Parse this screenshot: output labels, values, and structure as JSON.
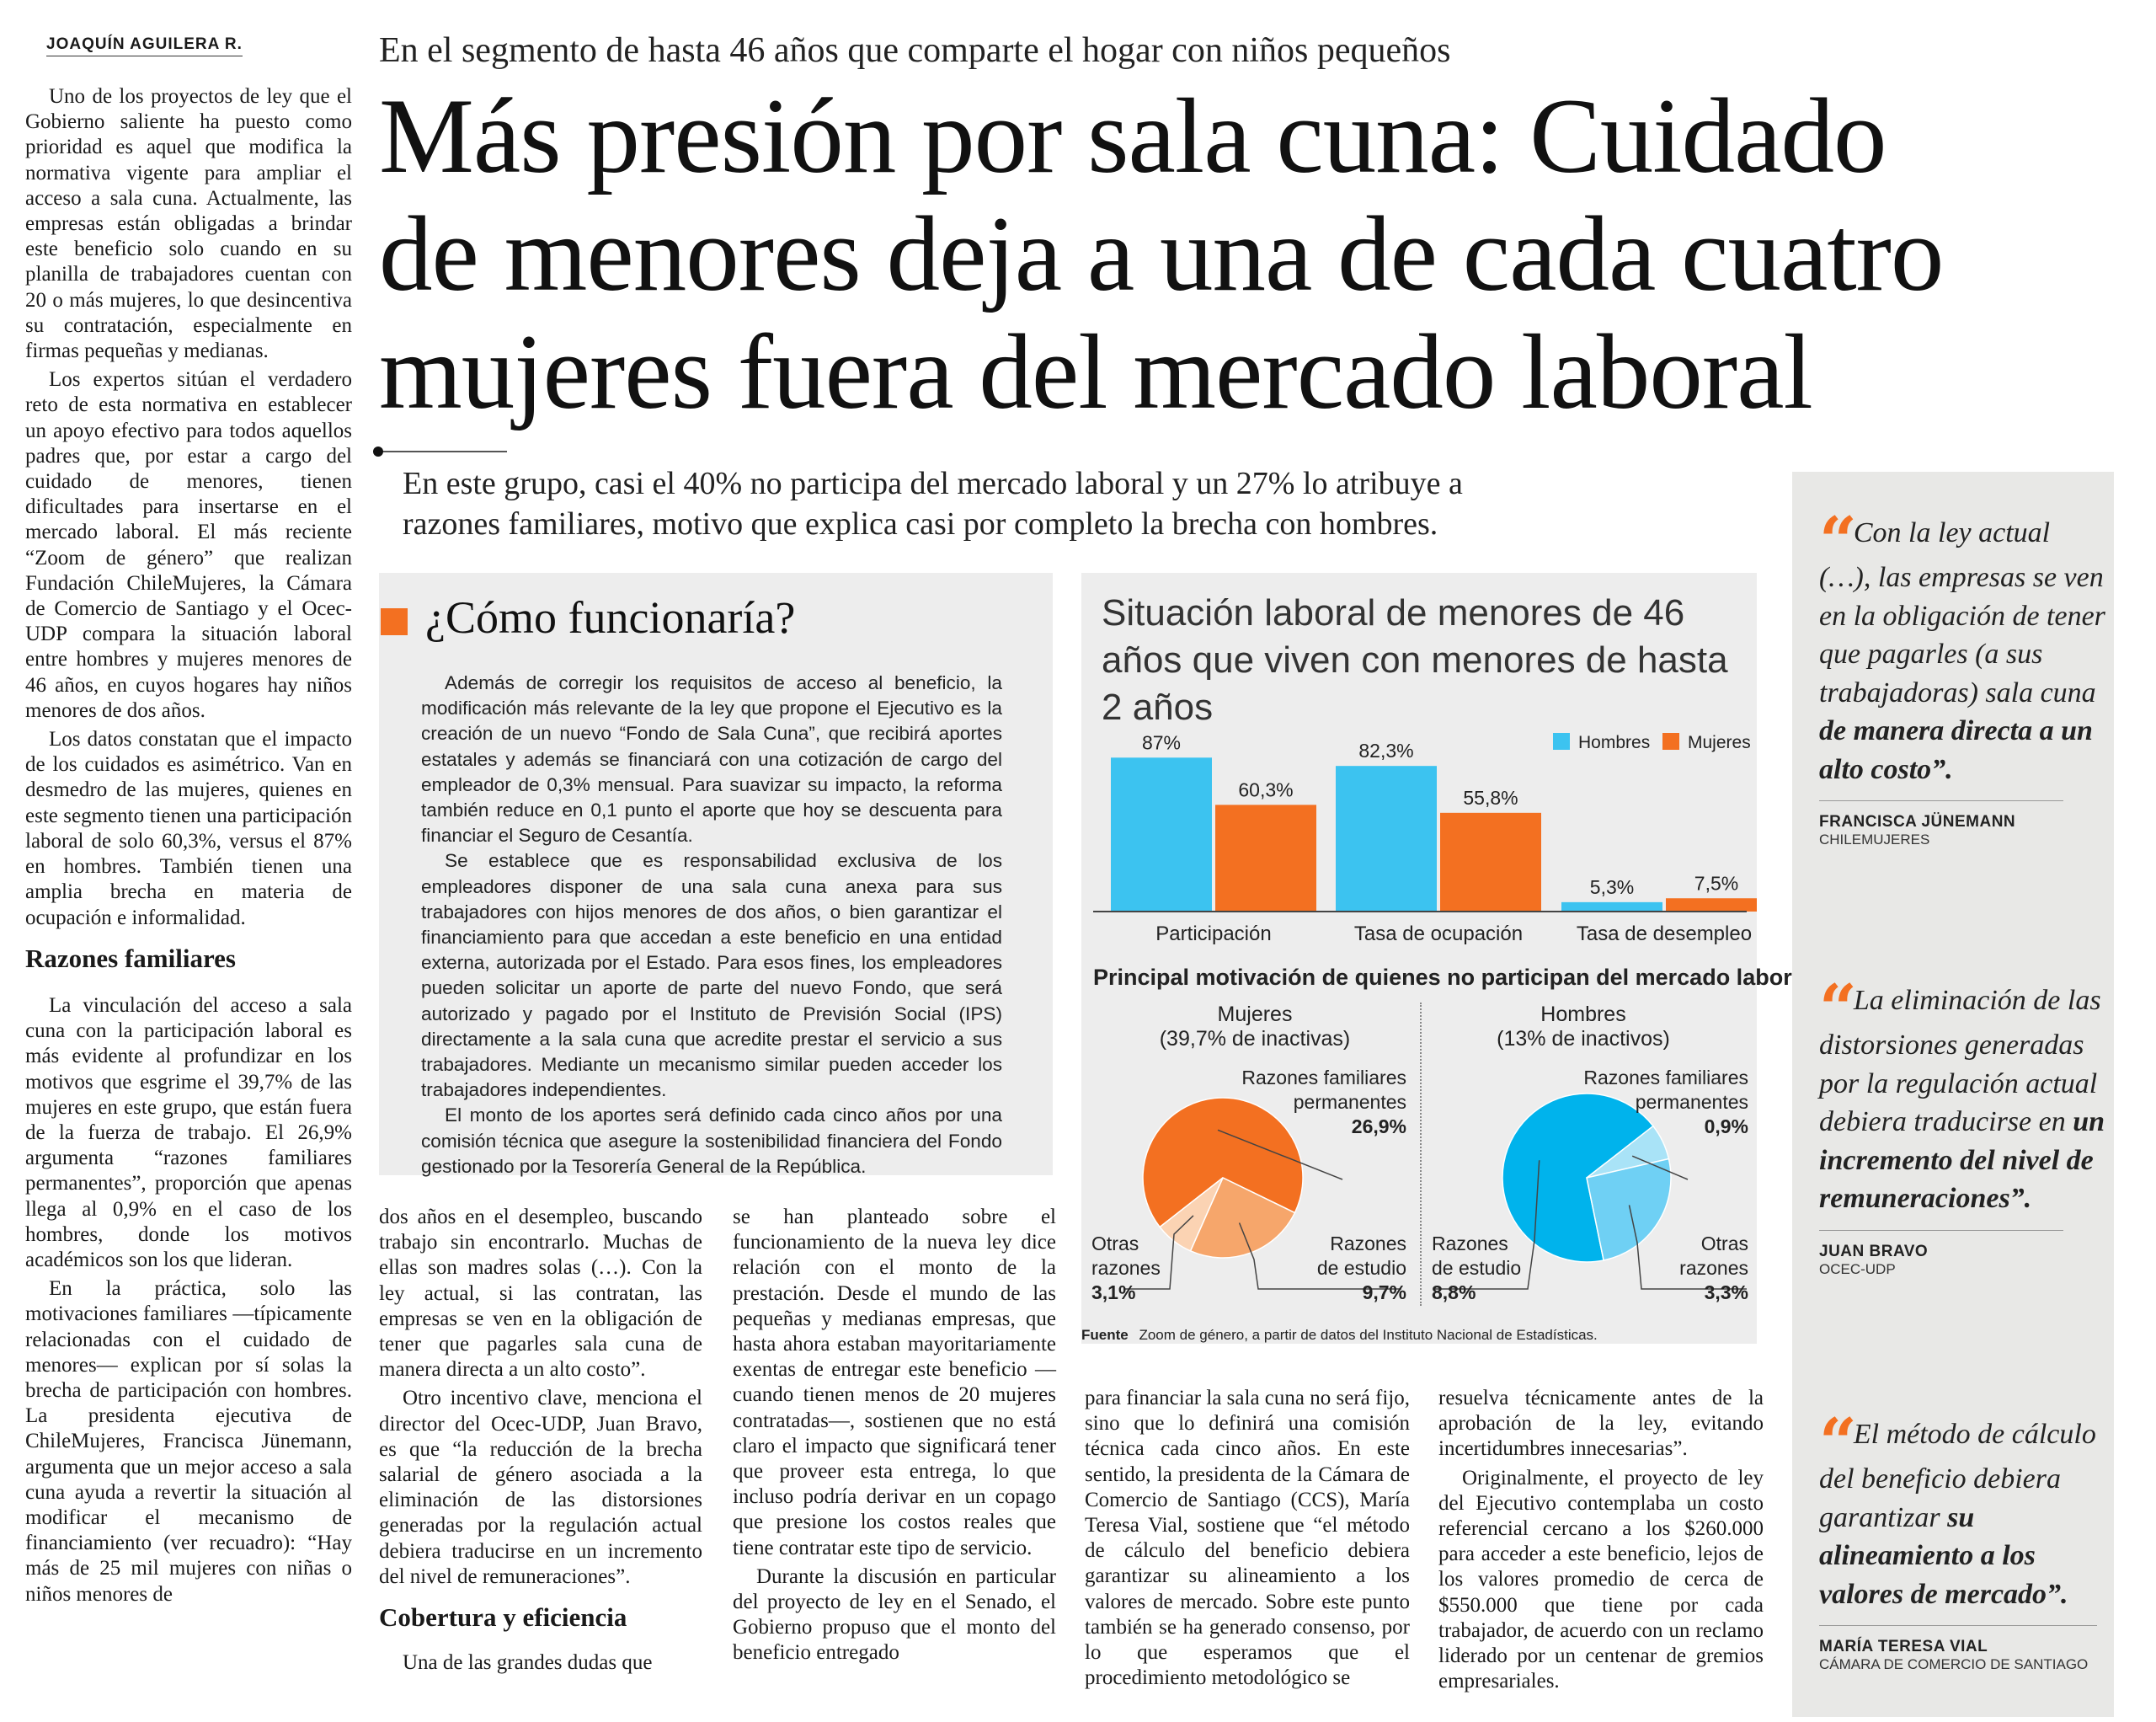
{
  "byline": "JOAQUÍN AGUILERA R.",
  "kicker": "En el segmento de hasta 46 años que comparte el hogar con niños pequeños",
  "headline": [
    "Más presión por sala cuna: Cuidado",
    "de menores deja a una de cada cuatro",
    "mujeres fuera del mercado laboral"
  ],
  "deck": [
    "En este grupo, casi el 40% no participa del mercado laboral y un 27% lo atribuye a",
    "razones familiares, motivo que explica casi por completo la brecha con hombres."
  ],
  "left_column": {
    "paragraphs": [
      "Uno de los proyectos de ley que el Gobierno saliente ha puesto como prioridad es aquel que modifica la normativa vigente para ampliar el acceso a sala cuna. Actualmente, las empresas están obligadas a brindar este beneficio solo cuando en su planilla de trabajadores cuentan con 20 o más mujeres, lo que desincentiva su contratación, especialmente en firmas pequeñas y medianas.",
      "Los expertos sitúan el verdadero reto de esta normativa en establecer un apoyo efectivo para todos aquellos padres que, por estar a cargo del cuidado de menores, tienen dificultades para insertarse en el mercado laboral. El más reciente “Zoom de género” que realizan Fundación ChileMujeres, la Cámara de Comercio de Santiago y el Ocec-UDP compara la situación laboral entre hombres y mujeres menores de 46 años, en cuyos hogares hay niños menores de dos años.",
      "Los datos constatan que el impacto de los cuidados es asimétrico. Van en desmedro de las mujeres, quienes en este segmento tienen una participación laboral de solo 60,3%, versus el 87% en hombres. También tienen una amplia brecha en materia de ocupación e informalidad."
    ],
    "subhead": "Razones familiares",
    "paragraphs_2": [
      "La vinculación del acceso a sala cuna con la participación laboral es más evidente al profundizar en los motivos que esgrime el 39,7% de las mujeres en este grupo, que están fuera de la fuerza de trabajo. El 26,9% argumenta “razones familiares permanentes”, proporción que apenas llega al 0,9% en el caso de los hombres, donde los motivos académicos son los que lideran.",
      "En la práctica, solo las motivaciones familiares —típicamente relacionadas con el cuidado de menores— explican por sí solas la brecha de participación con hombres. La presidenta ejecutiva de ChileMujeres, Francisca Jünemann, argumenta que un mejor acceso a sala cuna ayuda a revertir la situación al modificar el mecanismo de financiamiento (ver recuadro): “Hay más de 25 mil mujeres con niñas o niños menores de"
    ]
  },
  "box": {
    "title": "¿Cómo funcionaría?",
    "paragraphs": [
      "Además de corregir los requisitos de acceso al beneficio, la modificación más relevante de la ley que propone el Ejecutivo es la creación de un nuevo “Fondo de Sala Cuna”, que recibirá aportes estatales y además se financiará con una cotización de cargo del empleador de 0,3% mensual. Para suavizar su impacto, la reforma también reduce en 0,1 punto el aporte que hoy se descuenta para financiar el Seguro de Cesantía.",
      "Se establece que es responsabilidad exclusiva de los empleadores disponer de una sala cuna anexa para sus trabajadores con hijos menores de dos años, o bien garantizar el financiamiento para que accedan a este beneficio en una entidad externa, autorizada por el Estado. Para esos fines, los empleadores pueden solicitar un aporte de parte del nuevo Fondo, que será autorizado y pagado por el Instituto de Previsión Social (IPS) directamente a la sala cuna que acredite prestar el servicio a sus trabajadores. Mediante un mecanismo similar pueden acceder los trabajadores independientes.",
      "El monto de los aportes será definido cada cinco años por una comisión técnica que asegure la sostenibilidad financiera del Fondo gestionado por la Tesorería General de la República."
    ]
  },
  "col_b": {
    "paragraphs": [
      "dos años en el desempleo, buscando trabajo sin encontrarlo. Muchas de ellas son madres solas (…). Con la ley actual, si las contratan, las empresas se ven en la obligación de tener que pagarles sala cuna de manera directa a un alto costo”.",
      "Otro incentivo clave, menciona el director del Ocec-UDP, Juan Bravo, es que “la reducción de la brecha salarial de género asociada a la eliminación de las distorsiones generadas por la regulación actual debiera traducirse en un incremento del nivel de remuneraciones”."
    ],
    "subhead": "Cobertura y eficiencia",
    "paragraphs_2": [
      "Una de las grandes dudas que"
    ]
  },
  "col_c": {
    "paragraphs": [
      "se han planteado sobre el funcionamiento de la nueva ley dice relación con el monto de la prestación. Desde el mundo de las pequeñas y medianas empresas, que hasta ahora estaban mayoritariamente exentas de entregar este beneficio —cuando tienen menos de 20 mujeres contratadas—, sostienen que no está claro el impacto que significará tener que proveer esta entrega, lo que incluso podría derivar en un copago que presione los costos reales que tiene contratar este tipo de servicio.",
      "Durante la discusión en particular del proyecto de ley en el Senado, el Gobierno propuso que el monto del beneficio entregado"
    ]
  },
  "col_d": {
    "paragraphs": [
      "para financiar la sala cuna no será fijo, sino que lo definirá una comisión técnica cada cinco años. En este sentido, la presidenta de la Cámara de Comercio de Santiago (CCS), María Teresa Vial, sostiene que “el método de cálculo del beneficio debiera garantizar su alineamiento a los valores de mercado. Sobre este punto también se ha generado consenso, por lo que esperamos que el procedimiento metodológico se"
    ]
  },
  "col_e": {
    "paragraphs": [
      "resuelva técnicamente antes de la aprobación de la ley, evitando incertidumbres innecesarias”.",
      "Originalmente, el proyecto de ley del Ejecutivo contemplaba un costo referencial cercano a los $260.000 para acceder a este beneficio, lejos de los valores promedio de cerca de $550.000 que tiene por cada trabajador, de acuerdo con un reclamo liderado por un centenar de gremios empresariales."
    ]
  },
  "chart_data": [
    {
      "type": "bar",
      "title": "Situación laboral de menores de 46 años que viven con menores de hasta 2 años",
      "categories": [
        "Participación",
        "Tasa de ocupación",
        "Tasa de desempleo"
      ],
      "series": [
        {
          "name": "Hombres",
          "values": [
            87,
            82.3,
            5.3
          ],
          "labels": [
            "87%",
            "82,3%",
            "5,3%"
          ],
          "color": "#3cc3f0"
        },
        {
          "name": "Mujeres",
          "values": [
            60.3,
            55.8,
            7.5
          ],
          "labels": [
            "60,3%",
            "55,8%",
            "7,5%"
          ],
          "color": "#f37021"
        }
      ],
      "ylim": [
        0,
        100
      ],
      "legend": "top-right"
    },
    {
      "type": "pie",
      "title": "Principal motivación de quienes no participan del mercado laboral",
      "name": "Mujeres",
      "subtitle": "(39,7% de inactivas)",
      "slices": [
        {
          "label": "Razones familiares permanentes",
          "value": 26.9,
          "display": "26,9%",
          "color": "#f37021"
        },
        {
          "label": "Razones de estudio",
          "value": 9.7,
          "display": "9,7%",
          "color": "#f6a66b"
        },
        {
          "label": "Otras razones",
          "value": 3.1,
          "display": "3,1%",
          "color": "#fbd3b3"
        }
      ]
    },
    {
      "type": "pie",
      "name": "Hombres",
      "subtitle": "(13% de inactivos)",
      "slices": [
        {
          "label": "Razones familiares permanentes",
          "value": 0.9,
          "display": "0,9%",
          "color": "#a9e3f7"
        },
        {
          "label": "Razones de estudio",
          "value": 8.8,
          "display": "8,8%",
          "color": "#00b3ec"
        },
        {
          "label": "Otras razones",
          "value": 3.3,
          "display": "3,3%",
          "color": "#6fd0f4"
        }
      ]
    }
  ],
  "chart_text": {
    "pie_labels": {
      "familiares": [
        "Razones familiares",
        "permanentes"
      ],
      "estudio_f": [
        "Razones",
        "de estudio"
      ],
      "otras_f": [
        "Otras",
        "razones"
      ],
      "estudio_m": [
        "Razones",
        "de estudio"
      ],
      "otras_m": [
        "Otras",
        "razones"
      ]
    },
    "source_label": "Fuente",
    "source_text": "Zoom de género, a partir de datos del Instituto Nacional de Estadísticas."
  },
  "quotes": [
    {
      "parts": [
        {
          "t": "Con la ley actual (…), las empresas se ven en la obligación de tener que pagarles (a sus trabajadoras) sala cuna ",
          "b": false
        },
        {
          "t": "de manera directa a un alto costo”.",
          "b": true
        }
      ],
      "name": "FRANCISCA JÜNEMANN",
      "org": "CHILEMUJERES"
    },
    {
      "parts": [
        {
          "t": "La eliminación de las distorsiones generadas por la regulación actual debiera traducirse en ",
          "b": false
        },
        {
          "t": "un incremento del nivel de remuneraciones”.",
          "b": true
        }
      ],
      "name": "JUAN BRAVO",
      "org": "OCEC-UDP"
    },
    {
      "parts": [
        {
          "t": "El método de cálculo del beneficio debiera garantizar ",
          "b": false
        },
        {
          "t": "su alineamiento a los valores de mercado”.",
          "b": true
        }
      ],
      "name": "MARÍA TERESA VIAL",
      "org": "CÁMARA DE COMERCIO DE SANTIAGO"
    }
  ],
  "colors": {
    "accent": "#f37021",
    "blue": "#3cc3f0",
    "panel": "#ededed",
    "sidebar": "#e8e8e6"
  },
  "icons": {
    "box_marker": "orange-square",
    "quote_mark": "orange-quote-mark"
  }
}
